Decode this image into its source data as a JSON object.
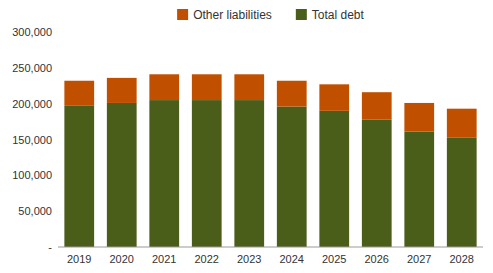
{
  "chart_data": {
    "type": "bar",
    "stacked": true,
    "categories": [
      "2019",
      "2020",
      "2021",
      "2022",
      "2023",
      "2024",
      "2025",
      "2026",
      "2027",
      "2028"
    ],
    "series": [
      {
        "name": "Total debt",
        "color": "#4a5e1a",
        "values": [
          197000,
          201000,
          205000,
          205000,
          205000,
          196000,
          190000,
          178000,
          161000,
          153000
        ]
      },
      {
        "name": "Other liabilities",
        "color": "#c05000",
        "values": [
          35000,
          35000,
          36000,
          36000,
          36000,
          36000,
          37000,
          38000,
          40000,
          40000
        ]
      }
    ],
    "ylim": [
      0,
      300000
    ],
    "yticks": [
      {
        "value": 0,
        "label": "-"
      },
      {
        "value": 50000,
        "label": "50,000"
      },
      {
        "value": 100000,
        "label": "100,000"
      },
      {
        "value": 150000,
        "label": "150,000"
      },
      {
        "value": 200000,
        "label": "200,000"
      },
      {
        "value": 250000,
        "label": "250,000"
      },
      {
        "value": 300000,
        "label": "300,000"
      }
    ],
    "grid": false,
    "legend": "top"
  }
}
